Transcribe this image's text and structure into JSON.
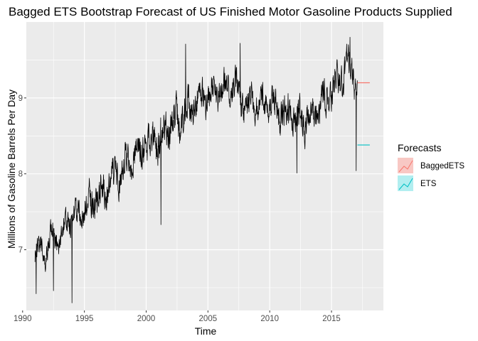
{
  "chart_data": {
    "type": "line",
    "title": "Bagged ETS Bootstrap Forecast of US Finished Motor Gasoline Products Supplied",
    "xlabel": "Time",
    "ylabel": "Millions of Gasoline Barrels Per Day",
    "xlim": [
      1990.3,
      2019.2
    ],
    "ylim": [
      6.2,
      10.0
    ],
    "x_ticks": [
      1990,
      1995,
      2000,
      2005,
      2010,
      2015
    ],
    "y_ticks": [
      7,
      8,
      9
    ],
    "grid": true,
    "legend": {
      "title": "Forecasts",
      "position": "right"
    },
    "history_color": "#000000",
    "trend": {
      "x": [
        1991.0,
        1992.0,
        1993.0,
        1994.0,
        1995.0,
        1996.0,
        1997.0,
        1998.0,
        1999.0,
        2000.0,
        2001.0,
        2002.0,
        2003.0,
        2004.0,
        2005.0,
        2006.0,
        2007.0,
        2008.0,
        2009.0,
        2010.0,
        2011.0,
        2012.0,
        2013.0,
        2014.0,
        2015.0,
        2016.0,
        2016.6,
        2017.1
      ],
      "y": [
        6.95,
        7.05,
        7.2,
        7.4,
        7.55,
        7.7,
        7.85,
        8.05,
        8.25,
        8.4,
        8.45,
        8.65,
        8.75,
        8.95,
        9.05,
        9.1,
        9.15,
        8.9,
        8.95,
        8.95,
        8.85,
        8.7,
        8.75,
        8.85,
        9.1,
        9.35,
        9.45,
        9.1
      ]
    },
    "amplitude": [
      0.18,
      0.25,
      0.24,
      0.3,
      0.3,
      0.32,
      0.32,
      0.32,
      0.32,
      0.34,
      0.36,
      0.38,
      0.34,
      0.32,
      0.32,
      0.3,
      0.3,
      0.3,
      0.3,
      0.3,
      0.36,
      0.34,
      0.34,
      0.32,
      0.34,
      0.3,
      0.3,
      0.3
    ],
    "start": 1991.0,
    "end": 2017.1,
    "step": 0.0192,
    "extremes": [
      {
        "x": 1991.1,
        "y": 6.42
      },
      {
        "x": 1992.5,
        "y": 6.46
      },
      {
        "x": 1994.0,
        "y": 6.3
      },
      {
        "x": 2001.2,
        "y": 7.33
      },
      {
        "x": 2003.2,
        "y": 9.71
      },
      {
        "x": 2007.6,
        "y": 9.72
      },
      {
        "x": 2012.2,
        "y": 8.01
      },
      {
        "x": 2016.5,
        "y": 9.8
      },
      {
        "x": 2017.0,
        "y": 8.04
      }
    ],
    "series": [
      {
        "name": "BaggedETS",
        "x": [
          2017.1,
          2018.1
        ],
        "y": [
          9.2,
          9.2
        ],
        "color": "#F8766D",
        "fill": "#F8C8C4"
      },
      {
        "name": "ETS",
        "x": [
          2017.1,
          2018.1
        ],
        "y": [
          8.38,
          8.38
        ],
        "color": "#00BFC4",
        "fill": "#B2EEF0"
      }
    ]
  }
}
